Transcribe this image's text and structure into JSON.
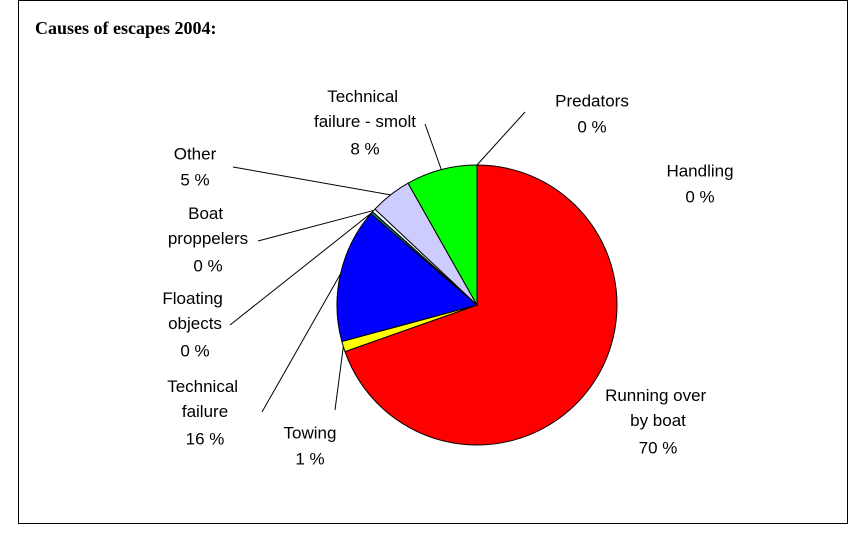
{
  "chart_data": {
    "type": "pie",
    "title": "Causes of escapes 2004:",
    "categories": [
      "Running over by boat",
      "Towing",
      "Technical failure",
      "Floating objects",
      "Boat proppelers",
      "Other",
      "Technical failure - smolt",
      "Predators",
      "Handling"
    ],
    "values": [
      69.6,
      1.2,
      15.5,
      0.3,
      0.4,
      4.8,
      8.2,
      0,
      0
    ],
    "value_labels": [
      "70 %",
      "1 %",
      "16 %",
      "0 %",
      "0 %",
      "5 %",
      "8 %",
      "0 %",
      "0 %"
    ],
    "colors": [
      "#ff0000",
      "#ffff00",
      "#0000ff",
      "#008080",
      "#ffffff",
      "#ccccff",
      "#00ff00",
      "#ff00ff",
      "#00ffff"
    ]
  }
}
